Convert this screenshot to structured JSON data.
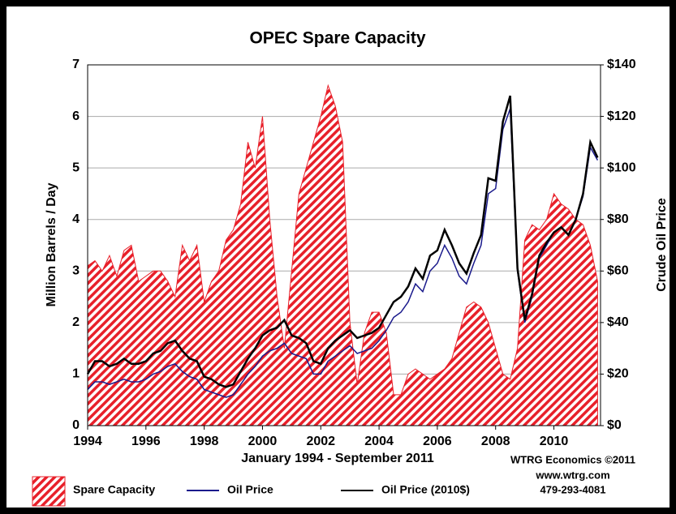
{
  "chart_data": {
    "type": "line",
    "title": "OPEC Spare Capacity",
    "subtitle": "January 1994 - September 2011",
    "ylabel": "Million Barrels / Day",
    "y2label": "Crude Oil Price",
    "credits": [
      "WTRG Economics ©2011",
      "www.wtrg.com",
      "479-293-4081"
    ],
    "xlim": [
      1994,
      2011.6
    ],
    "xticks": [
      1994,
      1996,
      1998,
      2000,
      2002,
      2004,
      2006,
      2008,
      2010
    ],
    "ylim": [
      0,
      7
    ],
    "yticks": [
      0,
      1,
      2,
      3,
      4,
      5,
      6,
      7
    ],
    "y2lim": [
      0,
      140
    ],
    "y2ticks": [
      {
        "value": 0,
        "label": "$0"
      },
      {
        "value": 20,
        "label": "$20"
      },
      {
        "value": 40,
        "label": "$40"
      },
      {
        "value": 60,
        "label": "$60"
      },
      {
        "value": 80,
        "label": "$80"
      },
      {
        "value": 100,
        "label": "$100"
      },
      {
        "value": 120,
        "label": "$120"
      },
      {
        "value": 140,
        "label": "$140"
      }
    ],
    "grid": true,
    "legend": "bottom",
    "x": [
      1994,
      1994.25,
      1994.5,
      1994.75,
      1995,
      1995.25,
      1995.5,
      1995.75,
      1996,
      1996.25,
      1996.5,
      1996.75,
      1997,
      1997.25,
      1997.5,
      1997.75,
      1998,
      1998.25,
      1998.5,
      1998.75,
      1999,
      1999.25,
      1999.5,
      1999.75,
      2000,
      2000.25,
      2000.5,
      2000.75,
      2001,
      2001.25,
      2001.5,
      2001.75,
      2002,
      2002.25,
      2002.5,
      2002.75,
      2003,
      2003.25,
      2003.5,
      2003.75,
      2004,
      2004.25,
      2004.5,
      2004.75,
      2005,
      2005.25,
      2005.5,
      2005.75,
      2006,
      2006.25,
      2006.5,
      2006.75,
      2007,
      2007.25,
      2007.5,
      2007.75,
      2008,
      2008.25,
      2008.5,
      2008.75,
      2009,
      2009.25,
      2009.5,
      2009.75,
      2010,
      2010.25,
      2010.5,
      2010.75,
      2011,
      2011.25,
      2011.5
    ],
    "series": [
      {
        "name": "Spare Capacity",
        "color": "#e8202a",
        "kind": "area",
        "values": [
          3.1,
          3.2,
          3.0,
          3.3,
          2.9,
          3.4,
          3.5,
          2.8,
          2.9,
          3.0,
          3.0,
          2.8,
          2.5,
          3.5,
          3.2,
          3.5,
          2.4,
          2.8,
          3.0,
          3.6,
          3.8,
          4.3,
          5.5,
          5.0,
          6.0,
          4.0,
          2.5,
          1.5,
          3.0,
          4.5,
          5.0,
          5.5,
          6.0,
          6.6,
          6.2,
          5.5,
          2.0,
          0.8,
          1.8,
          2.2,
          2.2,
          1.8,
          0.6,
          0.6,
          1.0,
          1.1,
          1.0,
          0.9,
          1.0,
          1.1,
          1.3,
          1.8,
          2.3,
          2.4,
          2.3,
          2.0,
          1.5,
          1.0,
          0.9,
          1.5,
          3.6,
          3.9,
          3.8,
          4.0,
          4.5,
          4.3,
          4.2,
          4.0,
          3.9,
          3.5,
          2.8
        ]
      },
      {
        "name": "Oil Price",
        "color": "#1a1a8c",
        "kind": "line",
        "axis": "y2",
        "values": [
          14,
          17,
          17,
          16,
          17,
          18,
          17,
          17,
          18,
          20,
          21,
          23,
          24,
          21,
          19,
          18,
          14,
          13,
          12,
          11,
          12,
          16,
          20,
          23,
          27,
          29,
          30,
          32,
          28,
          27,
          26,
          20,
          20,
          25,
          27,
          29,
          31,
          28,
          29,
          30,
          33,
          37,
          42,
          44,
          48,
          55,
          52,
          60,
          63,
          70,
          65,
          58,
          55,
          63,
          70,
          90,
          92,
          115,
          123,
          60,
          40,
          50,
          65,
          70,
          75,
          77,
          74,
          80,
          89,
          108,
          103
        ]
      },
      {
        "name": "Oil Price (2010$)",
        "color": "#000000",
        "kind": "line",
        "axis": "y2",
        "values": [
          20,
          25,
          25,
          23,
          24,
          26,
          24,
          24,
          25,
          28,
          29,
          32,
          33,
          29,
          26,
          25,
          19,
          18,
          16,
          15,
          16,
          21,
          26,
          30,
          35,
          37,
          38,
          41,
          35,
          34,
          32,
          25,
          24,
          30,
          33,
          35,
          37,
          34,
          35,
          36,
          38,
          43,
          48,
          50,
          54,
          61,
          57,
          66,
          68,
          76,
          70,
          63,
          59,
          67,
          74,
          96,
          95,
          118,
          128,
          61,
          41,
          51,
          66,
          71,
          75,
          77,
          74,
          80,
          90,
          110,
          104
        ]
      }
    ]
  }
}
